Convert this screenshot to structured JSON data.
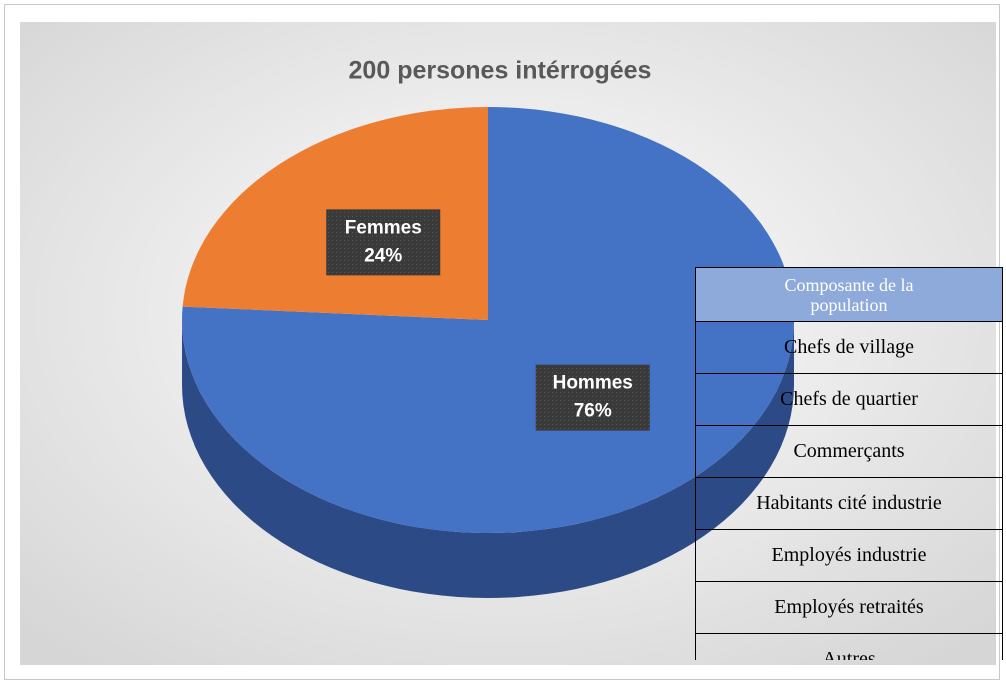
{
  "chart_data": {
    "type": "pie",
    "title": "200 persones intérrogées",
    "categories": [
      "Hommes",
      "Femmes"
    ],
    "values": [
      76,
      24
    ],
    "value_labels": [
      "76%",
      "24%"
    ],
    "colors": [
      "#4472c4",
      "#ed7d31"
    ],
    "side_color": "#2c4a85"
  },
  "table": {
    "header": "Composante de la population",
    "rows": [
      "Chefs de village",
      "Chefs de quartier",
      "Commerçants",
      "Habitants cité industrie",
      "Employés industrie",
      "Employés retraités",
      "Autres"
    ]
  }
}
